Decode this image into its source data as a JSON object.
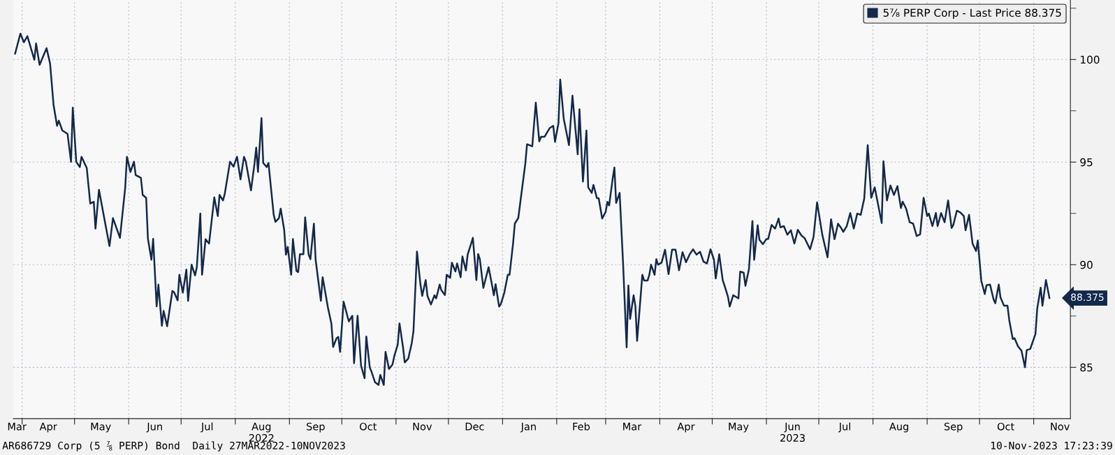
{
  "chart_data": {
    "type": "line",
    "x": [
      "2022-03-28",
      "2022-03-31",
      "2022-04-02",
      "2022-04-04",
      "2022-04-08",
      "2022-04-09",
      "2022-04-11",
      "2022-04-15",
      "2022-04-17",
      "2022-04-19",
      "2022-04-21",
      "2022-04-22",
      "2022-04-24",
      "2022-04-27",
      "2022-04-29",
      "2022-04-30",
      "2022-05-02",
      "2022-05-04",
      "2022-05-05",
      "2022-05-08",
      "2022-05-10",
      "2022-05-12",
      "2022-05-13",
      "2022-05-15",
      "2022-05-18",
      "2022-05-21",
      "2022-05-23",
      "2022-05-27",
      "2022-05-30",
      "2022-05-31",
      "2022-06-02",
      "2022-06-04",
      "2022-06-05",
      "2022-06-08",
      "2022-06-09",
      "2022-06-11",
      "2022-06-12",
      "2022-06-14",
      "2022-06-15",
      "2022-06-17",
      "2022-06-18",
      "2022-06-20",
      "2022-06-21",
      "2022-06-23",
      "2022-06-26",
      "2022-06-27",
      "2022-06-29",
      "2022-06-30",
      "2022-07-02",
      "2022-07-04",
      "2022-07-05",
      "2022-07-07",
      "2022-07-09",
      "2022-07-10",
      "2022-07-12",
      "2022-07-13",
      "2022-07-15",
      "2022-07-17",
      "2022-07-20",
      "2022-07-22",
      "2022-07-23",
      "2022-07-25",
      "2022-07-26",
      "2022-07-29",
      "2022-07-31",
      "2022-08-02",
      "2022-08-04",
      "2022-08-06",
      "2022-08-07",
      "2022-08-10",
      "2022-08-12",
      "2022-08-13",
      "2022-08-14",
      "2022-08-16",
      "2022-08-17",
      "2022-08-19",
      "2022-08-20",
      "2022-08-23",
      "2022-08-24",
      "2022-08-26",
      "2022-08-27",
      "2022-08-29",
      "2022-08-30",
      "2022-08-31",
      "2022-09-02",
      "2022-09-03",
      "2022-09-05",
      "2022-09-06",
      "2022-09-07",
      "2022-09-09",
      "2022-09-10",
      "2022-09-12",
      "2022-09-13",
      "2022-09-15",
      "2022-09-16",
      "2022-09-19",
      "2022-09-20",
      "2022-09-22",
      "2022-09-23",
      "2022-09-25",
      "2022-09-26",
      "2022-09-28",
      "2022-09-29",
      "2022-09-30",
      "2022-10-02",
      "2022-10-05",
      "2022-10-07",
      "2022-10-08",
      "2022-10-10",
      "2022-10-12",
      "2022-10-14",
      "2022-10-15",
      "2022-10-17",
      "2022-10-18",
      "2022-10-20",
      "2022-10-22",
      "2022-10-23",
      "2022-10-25",
      "2022-10-26",
      "2022-10-28",
      "2022-10-30",
      "2022-10-31",
      "2022-11-02",
      "2022-11-03",
      "2022-11-05",
      "2022-11-06",
      "2022-11-08",
      "2022-11-10",
      "2022-11-11",
      "2022-11-13",
      "2022-11-15",
      "2022-11-16",
      "2022-11-18",
      "2022-11-19",
      "2022-11-21",
      "2022-11-23",
      "2022-11-24",
      "2022-11-26",
      "2022-11-27",
      "2022-11-29",
      "2022-11-30",
      "2022-12-02",
      "2022-12-03",
      "2022-12-05",
      "2022-12-06",
      "2022-12-08",
      "2022-12-09",
      "2022-12-11",
      "2022-12-12",
      "2022-12-14",
      "2022-12-15",
      "2022-12-17",
      "2022-12-18",
      "2022-12-19",
      "2022-12-21",
      "2022-12-24",
      "2022-12-26",
      "2022-12-27",
      "2022-12-28",
      "2022-12-30",
      "2022-12-31",
      "2023-01-02",
      "2023-01-04",
      "2023-01-05",
      "2023-01-07",
      "2023-01-08",
      "2023-01-10",
      "2023-01-14",
      "2023-01-15",
      "2023-01-18",
      "2023-01-20",
      "2023-01-22",
      "2023-01-23",
      "2023-01-25",
      "2023-01-28",
      "2023-01-30",
      "2023-01-31",
      "2023-02-02",
      "2023-02-03",
      "2023-02-05",
      "2023-02-07",
      "2023-02-08",
      "2023-02-10",
      "2023-02-13",
      "2023-02-14",
      "2023-02-16",
      "2023-02-18",
      "2023-02-19",
      "2023-02-21",
      "2023-02-22",
      "2023-02-24",
      "2023-02-25",
      "2023-02-27",
      "2023-03-01",
      "2023-03-02",
      "2023-03-03",
      "2023-03-05",
      "2023-03-06",
      "2023-03-07",
      "2023-03-09",
      "2023-03-11",
      "2023-03-13",
      "2023-03-14",
      "2023-03-15",
      "2023-03-17",
      "2023-03-18",
      "2023-03-19",
      "2023-03-22",
      "2023-03-23",
      "2023-03-25",
      "2023-03-26",
      "2023-03-27",
      "2023-03-29",
      "2023-03-30",
      "2023-03-31",
      "2023-04-02",
      "2023-04-04",
      "2023-04-06",
      "2023-04-08",
      "2023-04-10",
      "2023-04-12",
      "2023-04-14",
      "2023-04-16",
      "2023-04-18",
      "2023-04-20",
      "2023-04-22",
      "2023-04-24",
      "2023-04-26",
      "2023-04-28",
      "2023-04-30",
      "2023-05-02",
      "2023-05-03",
      "2023-05-05",
      "2023-05-07",
      "2023-05-08",
      "2023-05-10",
      "2023-05-11",
      "2023-05-13",
      "2023-05-16",
      "2023-05-17",
      "2023-05-19",
      "2023-05-20",
      "2023-05-22",
      "2023-05-24",
      "2023-05-25",
      "2023-05-27",
      "2023-05-28",
      "2023-05-30",
      "2023-06-01",
      "2023-06-02",
      "2023-06-04",
      "2023-06-06",
      "2023-06-08",
      "2023-06-09",
      "2023-06-11",
      "2023-06-13",
      "2023-06-15",
      "2023-06-17",
      "2023-06-19",
      "2023-06-21",
      "2023-06-23",
      "2023-06-26",
      "2023-06-28",
      "2023-06-30",
      "2023-07-03",
      "2023-07-06",
      "2023-07-08",
      "2023-07-10",
      "2023-07-12",
      "2023-07-14",
      "2023-07-15",
      "2023-07-17",
      "2023-07-19",
      "2023-07-21",
      "2023-07-23",
      "2023-07-25",
      "2023-07-27",
      "2023-07-29",
      "2023-07-31",
      "2023-08-02",
      "2023-08-06",
      "2023-08-07",
      "2023-08-09",
      "2023-08-11",
      "2023-08-13",
      "2023-08-15",
      "2023-08-17",
      "2023-08-18",
      "2023-08-20",
      "2023-08-22",
      "2023-08-24",
      "2023-08-26",
      "2023-08-28",
      "2023-08-30",
      "2023-09-01",
      "2023-09-02",
      "2023-09-04",
      "2023-09-06",
      "2023-09-07",
      "2023-09-09",
      "2023-09-11",
      "2023-09-13",
      "2023-09-15",
      "2023-09-16",
      "2023-09-18",
      "2023-09-20",
      "2023-09-22",
      "2023-09-23",
      "2023-09-25",
      "2023-09-27",
      "2023-09-29",
      "2023-09-30",
      "2023-10-02",
      "2023-10-04",
      "2023-10-05",
      "2023-10-07",
      "2023-10-09",
      "2023-10-10",
      "2023-10-12",
      "2023-10-13",
      "2023-10-15",
      "2023-10-17",
      "2023-10-18",
      "2023-10-20",
      "2023-10-21",
      "2023-10-23",
      "2023-10-25",
      "2023-10-27",
      "2023-10-28",
      "2023-10-30",
      "2023-11-02",
      "2023-11-03",
      "2023-11-05",
      "2023-11-06",
      "2023-11-08",
      "2023-11-10"
    ],
    "series": [
      {
        "name": "5⅞ PERP Corp - Last Price 88.375",
        "color": "#13294b",
        "values": [
          100.29,
          101.26,
          100.84,
          101.14,
          99.99,
          100.78,
          99.74,
          100.55,
          99.81,
          97.78,
          96.77,
          97.02,
          96.54,
          96.38,
          95.01,
          97.65,
          95.01,
          94.76,
          95.26,
          94.71,
          92.98,
          93.07,
          91.76,
          93.65,
          92.27,
          90.91,
          92.27,
          91.31,
          93.74,
          95.26,
          94.52,
          95.02,
          94.37,
          94.23,
          93.4,
          93.26,
          91.28,
          90.24,
          91.26,
          87.97,
          89.03,
          87.02,
          87.75,
          87.0,
          88.72,
          88.66,
          88.26,
          89.51,
          88.64,
          89.76,
          88.24,
          90.0,
          89.48,
          89.88,
          92.49,
          89.51,
          91.24,
          91.03,
          93.28,
          92.37,
          93.4,
          93.13,
          93.46,
          95.02,
          94.78,
          95.26,
          94.16,
          95.26,
          95.04,
          93.62,
          94.92,
          95.71,
          94.52,
          97.14,
          94.96,
          94.76,
          94.96,
          92.43,
          92.09,
          92.27,
          92.73,
          91.7,
          90.49,
          90.87,
          89.51,
          91.25,
          89.7,
          89.64,
          90.51,
          90.51,
          92.31,
          90.49,
          90.27,
          92.0,
          90.24,
          88.24,
          89.39,
          88.42,
          87.93,
          87.14,
          85.99,
          86.42,
          86.48,
          85.75,
          88.2,
          87.24,
          87.51,
          85.2,
          87.51,
          85.08,
          84.47,
          86.5,
          84.99,
          84.78,
          84.27,
          84.14,
          84.63,
          84.14,
          85.75,
          84.92,
          85.14,
          85.54,
          86.11,
          87.14,
          85.99,
          85.24,
          85.42,
          86.17,
          86.76,
          90.64,
          89.03,
          88.48,
          89.25,
          88.48,
          88.06,
          88.51,
          88.36,
          89.03,
          88.75,
          88.52,
          89.51,
          89.36,
          90.1,
          89.67,
          90.06,
          89.39,
          90.4,
          89.72,
          90.49,
          91.03,
          91.31,
          89.25,
          90.52,
          90.27,
          88.87,
          89.88,
          88.99,
          88.51,
          89.05,
          87.96,
          88.08,
          88.64,
          89.51,
          89.51,
          91.03,
          92.0,
          92.28,
          94.92,
          95.87,
          95.77,
          97.9,
          96.01,
          96.23,
          96.23,
          96.66,
          96.77,
          95.99,
          96.9,
          99.02,
          97.11,
          96.26,
          95.83,
          98.24,
          95.38,
          97.58,
          94.05,
          96.54,
          93.77,
          93.5,
          93.89,
          93.24,
          93.24,
          92.25,
          92.58,
          93.06,
          92.89,
          94.19,
          94.74,
          93.01,
          93.5,
          90.0,
          85.97,
          88.99,
          87.36,
          88.51,
          88.0,
          86.29,
          89.51,
          89.23,
          89.23,
          89.51,
          90.0,
          89.51,
          90.27,
          90.0,
          90.1,
          90.73,
          89.54,
          90.73,
          90.73,
          89.73,
          90.61,
          90.12,
          90.49,
          90.75,
          90.49,
          90.63,
          90.15,
          90.06,
          90.75,
          90.24,
          89.33,
          90.51,
          89.25,
          88.99,
          88.44,
          87.96,
          88.51,
          88.36,
          89.66,
          89.61,
          88.97,
          89.78,
          92.13,
          90.24,
          91.92,
          91.22,
          91.0,
          91.25,
          91.25,
          91.94,
          91.76,
          92.25,
          91.82,
          91.88,
          91.46,
          91.68,
          91.03,
          91.7,
          91.43,
          91.28,
          90.75,
          91.36,
          93.04,
          91.46,
          90.36,
          92.21,
          91.24,
          92.0,
          91.76,
          91.6,
          91.88,
          92.52,
          91.76,
          92.49,
          92.43,
          93.22,
          95.83,
          93.26,
          93.77,
          92.03,
          95.04,
          93.13,
          93.86,
          93.4,
          93.83,
          92.76,
          93.07,
          92.73,
          92.07,
          92.0,
          91.4,
          91.48,
          93.26,
          92.37,
          92.49,
          91.88,
          92.52,
          91.88,
          92.52,
          92.07,
          93.13,
          91.79,
          91.94,
          92.63,
          92.55,
          92.37,
          91.68,
          92.43,
          91.03,
          90.67,
          91.18,
          89.21,
          88.57,
          89.0,
          89.03,
          88.32,
          88.12,
          89.03,
          88.4,
          88.0,
          88.0,
          87.3,
          86.38,
          86.42,
          86.02,
          85.81,
          85.0,
          85.84,
          85.89,
          86.62,
          87.85,
          88.88,
          88.0,
          89.25,
          88.375
        ]
      }
    ],
    "xlim": [
      "2022-03-27",
      "2023-11-22"
    ],
    "xticks": [
      {
        "value": "2022-03-29",
        "label": "Mar"
      },
      {
        "value": "2022-04-01",
        "label": null
      },
      {
        "value": "2022-04-16",
        "label": "Apr"
      },
      {
        "value": "2022-05-01",
        "label": null
      },
      {
        "value": "2022-05-16",
        "label": "May"
      },
      {
        "value": "2022-06-01",
        "label": null
      },
      {
        "value": "2022-06-16",
        "label": "Jun"
      },
      {
        "value": "2022-07-01",
        "label": null
      },
      {
        "value": "2022-07-16",
        "label": "Jul"
      },
      {
        "value": "2022-08-01",
        "label": null
      },
      {
        "value": "2022-08-16",
        "label": "Aug\n2022"
      },
      {
        "value": "2022-09-01",
        "label": null
      },
      {
        "value": "2022-09-16",
        "label": "Sep"
      },
      {
        "value": "2022-10-01",
        "label": null
      },
      {
        "value": "2022-10-16",
        "label": "Oct"
      },
      {
        "value": "2022-11-01",
        "label": null
      },
      {
        "value": "2022-11-16",
        "label": "Nov"
      },
      {
        "value": "2022-12-01",
        "label": null
      },
      {
        "value": "2022-12-16",
        "label": "Dec"
      },
      {
        "value": "2023-01-01",
        "label": null
      },
      {
        "value": "2023-01-16",
        "label": "Jan"
      },
      {
        "value": "2023-02-01",
        "label": null
      },
      {
        "value": "2023-02-15",
        "label": "Feb"
      },
      {
        "value": "2023-03-01",
        "label": null
      },
      {
        "value": "2023-03-16",
        "label": "Mar"
      },
      {
        "value": "2023-04-01",
        "label": null
      },
      {
        "value": "2023-04-16",
        "label": "Apr"
      },
      {
        "value": "2023-05-01",
        "label": null
      },
      {
        "value": "2023-05-16",
        "label": "May"
      },
      {
        "value": "2023-06-01",
        "label": null
      },
      {
        "value": "2023-06-16",
        "label": "Jun\n2023"
      },
      {
        "value": "2023-07-01",
        "label": null
      },
      {
        "value": "2023-07-16",
        "label": "Jul"
      },
      {
        "value": "2023-08-01",
        "label": null
      },
      {
        "value": "2023-08-16",
        "label": "Aug"
      },
      {
        "value": "2023-09-01",
        "label": null
      },
      {
        "value": "2023-09-16",
        "label": "Sep"
      },
      {
        "value": "2023-10-01",
        "label": null
      },
      {
        "value": "2023-10-16",
        "label": "Oct"
      },
      {
        "value": "2023-11-01",
        "label": null
      },
      {
        "value": "2023-11-16",
        "label": "Nov"
      }
    ],
    "ylim": [
      82.5,
      102.9
    ],
    "yticks": [
      85,
      {
        "value": 87.5,
        "label": null
      },
      90,
      {
        "value": 92.5,
        "label": null
      },
      95,
      {
        "value": 97.5,
        "label": null
      },
      100,
      {
        "value": 102.5,
        "label": null
      }
    ],
    "grid": true,
    "legend": "top right",
    "line_style": "solid",
    "annotations": [
      {
        "text": "88.375",
        "x": "2023-11-10",
        "y": 88.375
      },
      "AR686729 Corp (5 ⅞ PERP) Bond  Daily 27MAR2022-10NOV2023",
      "10-Nov-2023 17:23:39"
    ]
  }
}
